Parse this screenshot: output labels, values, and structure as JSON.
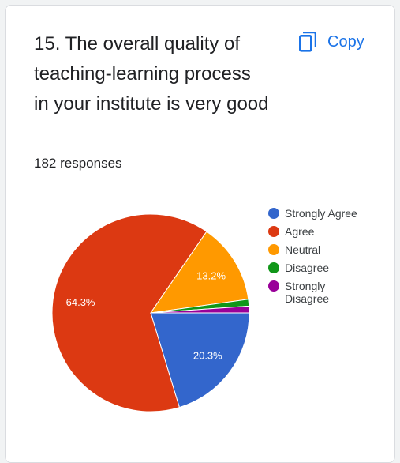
{
  "question": {
    "title": "15. The overall quality of teaching-learning process in your institute is very good",
    "responses": "182 responses",
    "copy_label": "Copy"
  },
  "colors": {
    "strongly_agree": "#3366cc",
    "agree": "#dc3912",
    "neutral": "#ff9900",
    "disagree": "#109618",
    "strongly_disagree": "#990099",
    "link": "#1a73e8"
  },
  "chart_data": {
    "type": "pie",
    "title": "",
    "slices": [
      {
        "name": "Strongly Agree",
        "value": 20.3,
        "label": "20.3%",
        "color": "#3366cc"
      },
      {
        "name": "Agree",
        "value": 64.3,
        "label": "64.3%",
        "color": "#dc3912"
      },
      {
        "name": "Neutral",
        "value": 13.2,
        "label": "13.2%",
        "color": "#ff9900"
      },
      {
        "name": "Disagree",
        "value": 1.1,
        "label": "",
        "color": "#109618"
      },
      {
        "name": "Strongly Disagree",
        "value": 1.1,
        "label": "",
        "color": "#990099"
      }
    ],
    "legend_position": "right"
  }
}
